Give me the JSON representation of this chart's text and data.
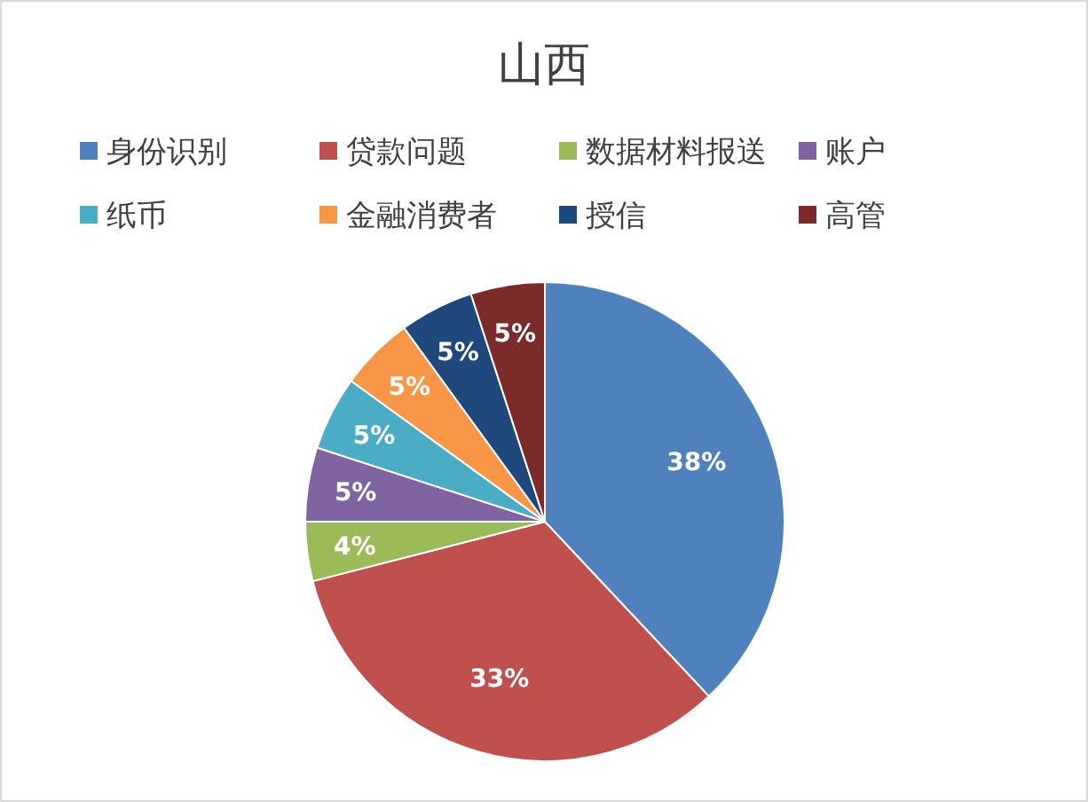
{
  "chart_data": {
    "type": "pie",
    "title": "山西",
    "legend": "top",
    "categories": [
      "身份识别",
      "贷款问题",
      "数据材料报送",
      "账户",
      "纸币",
      "金融消费者",
      "授信",
      "高管"
    ],
    "values": [
      38,
      33,
      4,
      5,
      5,
      5,
      5,
      5
    ],
    "value_labels": [
      "38%",
      "33%",
      "4%",
      "5%",
      "5%",
      "5%",
      "5%",
      "5%"
    ],
    "colors": [
      "#4f81bd",
      "#c0504d",
      "#9bbb59",
      "#8064a2",
      "#4bacc6",
      "#f79646",
      "#1f497d",
      "#7b2c2a"
    ]
  }
}
